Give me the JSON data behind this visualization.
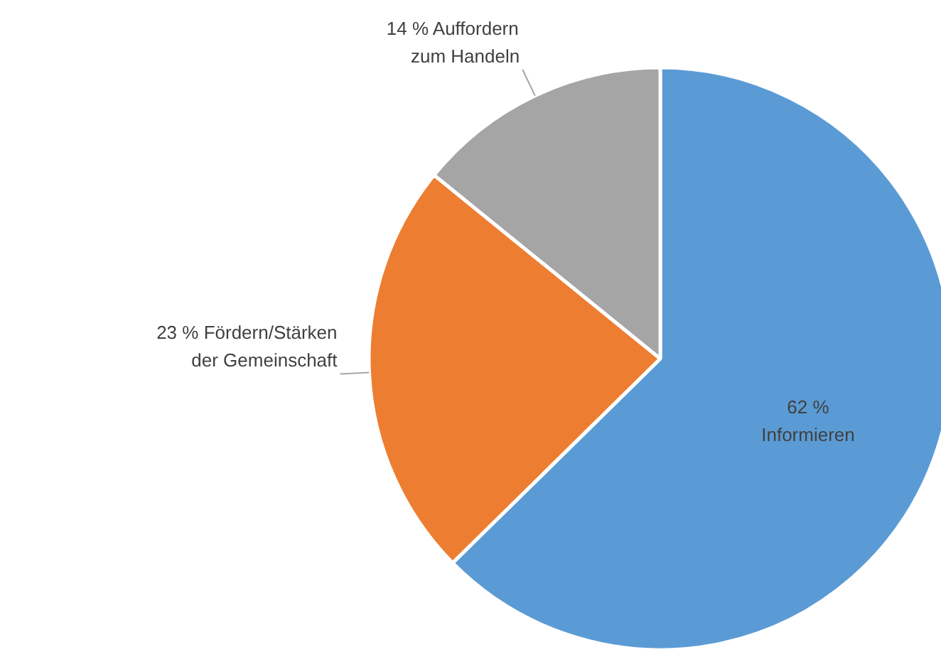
{
  "chart_data": {
    "type": "pie",
    "categories": [
      "Informieren",
      "Fördern/Stärken der Gemeinschaft",
      "Auffordern zum Handeln"
    ],
    "values": [
      62,
      23,
      14
    ],
    "colors": [
      "#5b9bd5",
      "#ed7d31",
      "#a5a5a5"
    ],
    "value_labels": [
      "62 %",
      "23 %",
      "14 %"
    ]
  }
}
